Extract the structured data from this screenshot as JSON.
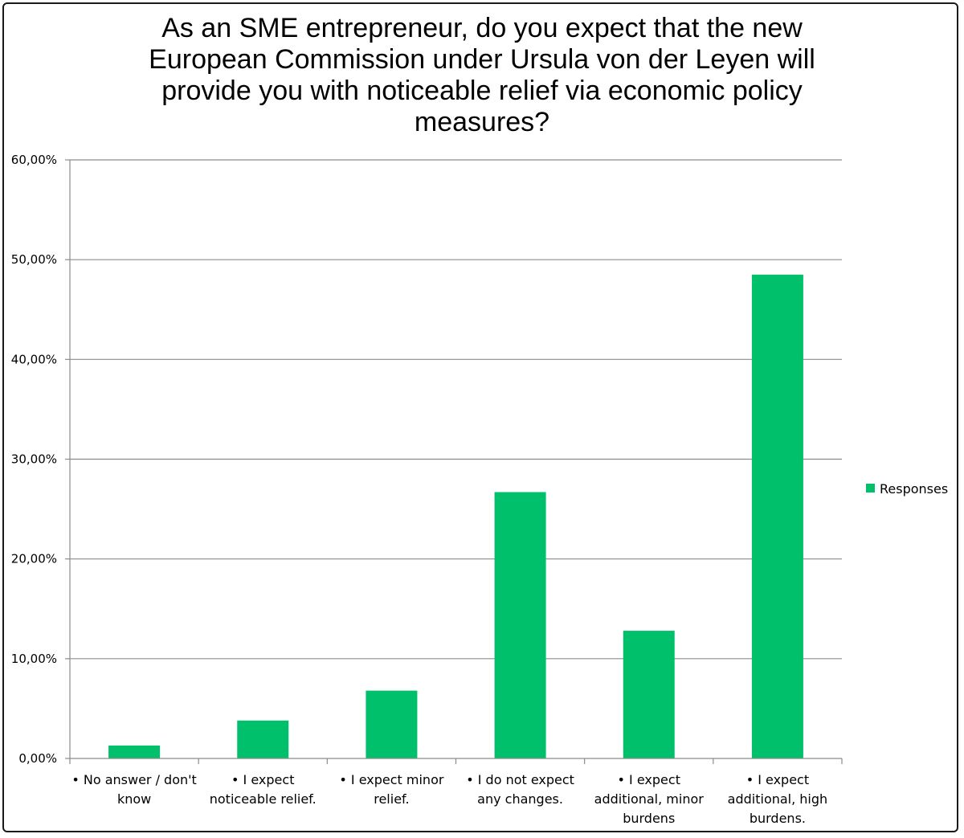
{
  "chart_data": {
    "type": "bar",
    "title": "As an SME entrepreneur, do you expect that the new European Commission under Ursula von der Leyen will provide you with noticeable relief via economic policy measures?",
    "categories": [
      "• No answer / don't know",
      "• I expect noticeable relief.",
      "• I expect minor relief.",
      "• I do not expect any changes.",
      "• I expect additional, minor burdens",
      "• I expect additional, high burdens."
    ],
    "category_lines": [
      [
        "• No answer / don't",
        "know"
      ],
      [
        "• I expect",
        "noticeable relief."
      ],
      [
        "• I expect minor",
        "relief."
      ],
      [
        "• I do not expect",
        "any changes."
      ],
      [
        "• I expect",
        "additional, minor",
        "burdens"
      ],
      [
        "• I expect",
        "additional, high",
        "burdens."
      ]
    ],
    "series": [
      {
        "name": "Responses",
        "values": [
          1.3,
          3.8,
          6.8,
          26.7,
          12.8,
          48.5
        ]
      }
    ],
    "ylim": [
      0,
      60
    ],
    "yticks": [
      0,
      10,
      20,
      30,
      40,
      50,
      60
    ],
    "ytick_labels": [
      "0,00%",
      "10,00%",
      "20,00%",
      "30,00%",
      "40,00%",
      "50,00%",
      "60,00%"
    ],
    "xlabel": "",
    "ylabel": "",
    "grid": true,
    "legend_position": "right",
    "colors": {
      "bar": "#00c06b",
      "grid": "#8c8c8c",
      "axis": "#8c8c8c"
    }
  }
}
